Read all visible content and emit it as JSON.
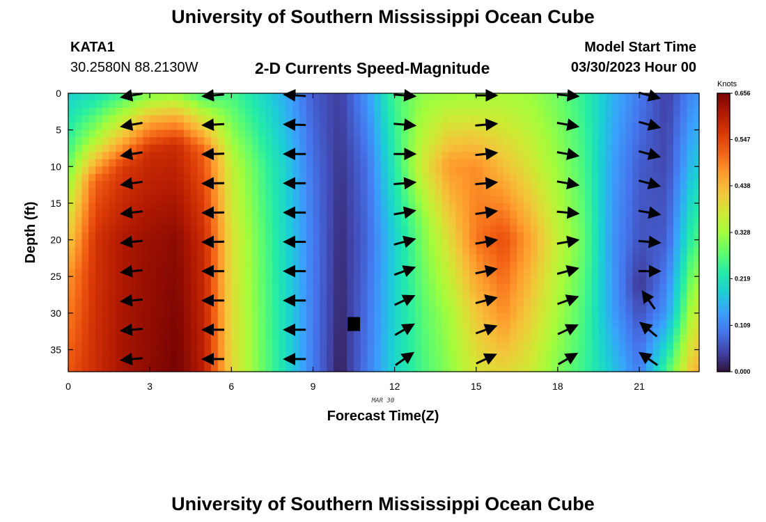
{
  "header": {
    "title": "University of Southern Mississippi Ocean Cube",
    "station": "KATA1",
    "coords": "30.2580N  88.2130W",
    "subtitle": "2-D Currents Speed-Magnitude",
    "model_start_label": "Model Start Time",
    "model_start_value": "03/30/2023 Hour 00"
  },
  "footer": {
    "title": "University of Southern Mississippi Ocean Cube"
  },
  "chart_data": {
    "type": "heatmap",
    "xlabel": "Forecast Time(Z)",
    "ylabel": "Depth (ft)",
    "date_label": "MAR 30",
    "xlim": [
      0,
      23.2
    ],
    "ylim": [
      38,
      0
    ],
    "xticks": [
      0,
      3,
      6,
      9,
      12,
      15,
      18,
      21
    ],
    "yticks": [
      0,
      5,
      10,
      15,
      20,
      25,
      30,
      35
    ],
    "colorbar": {
      "unit": "Knots",
      "ticks": [
        0.0,
        0.109,
        0.219,
        0.328,
        0.438,
        0.547,
        0.656
      ],
      "tick_labels": [
        "0.000",
        "0.109",
        "0.219",
        "0.328",
        "0.438",
        "0.547",
        "0.656"
      ],
      "range": [
        0,
        0.656
      ]
    },
    "colormap": [
      "#30123b",
      "#4145ab",
      "#4675ed",
      "#39a2fc",
      "#1bcfd4",
      "#24eca6",
      "#61fc6c",
      "#a4fc3b",
      "#d1e834",
      "#f3c63a",
      "#fe9b2d",
      "#f36315",
      "#d93806",
      "#b11901",
      "#7a0402"
    ],
    "speed_profiles": [
      {
        "time": 0,
        "depth_knots": [
          [
            0,
            0.19
          ],
          [
            8,
            0.26
          ],
          [
            15,
            0.36
          ],
          [
            25,
            0.47
          ],
          [
            38,
            0.53
          ]
        ]
      },
      {
        "time": 1,
        "depth_knots": [
          [
            0,
            0.21
          ],
          [
            6,
            0.33
          ],
          [
            12,
            0.52
          ],
          [
            20,
            0.57
          ],
          [
            38,
            0.58
          ]
        ]
      },
      {
        "time": 2,
        "depth_knots": [
          [
            0,
            0.25
          ],
          [
            5,
            0.4
          ],
          [
            10,
            0.56
          ],
          [
            20,
            0.61
          ],
          [
            38,
            0.62
          ]
        ]
      },
      {
        "time": 3,
        "depth_knots": [
          [
            0,
            0.3
          ],
          [
            4,
            0.46
          ],
          [
            8,
            0.58
          ],
          [
            20,
            0.63
          ],
          [
            38,
            0.64
          ]
        ]
      },
      {
        "time": 4,
        "depth_knots": [
          [
            0,
            0.31
          ],
          [
            3,
            0.44
          ],
          [
            7,
            0.58
          ],
          [
            20,
            0.64
          ],
          [
            38,
            0.66
          ]
        ]
      },
      {
        "time": 5,
        "depth_knots": [
          [
            0,
            0.25
          ],
          [
            3,
            0.36
          ],
          [
            8,
            0.52
          ],
          [
            20,
            0.58
          ],
          [
            38,
            0.6
          ]
        ]
      },
      {
        "time": 6,
        "depth_knots": [
          [
            0,
            0.26
          ],
          [
            10,
            0.36
          ],
          [
            20,
            0.39
          ],
          [
            38,
            0.4
          ]
        ]
      },
      {
        "time": 7,
        "depth_knots": [
          [
            0,
            0.21
          ],
          [
            10,
            0.27
          ],
          [
            20,
            0.29
          ],
          [
            38,
            0.3
          ]
        ]
      },
      {
        "time": 8,
        "depth_knots": [
          [
            0,
            0.15
          ],
          [
            10,
            0.19
          ],
          [
            20,
            0.2
          ],
          [
            38,
            0.21
          ]
        ]
      },
      {
        "time": 9,
        "depth_knots": [
          [
            0,
            0.07
          ],
          [
            10,
            0.09
          ],
          [
            20,
            0.1
          ],
          [
            38,
            0.1
          ]
        ]
      },
      {
        "time": 10,
        "depth_knots": [
          [
            0,
            0.04
          ],
          [
            10,
            0.03
          ],
          [
            25,
            0.02
          ],
          [
            38,
            0.01
          ]
        ]
      },
      {
        "time": 11,
        "depth_knots": [
          [
            0,
            0.13
          ],
          [
            10,
            0.09
          ],
          [
            20,
            0.08
          ],
          [
            38,
            0.1
          ]
        ]
      },
      {
        "time": 12,
        "depth_knots": [
          [
            0,
            0.26
          ],
          [
            10,
            0.23
          ],
          [
            20,
            0.19
          ],
          [
            38,
            0.2
          ]
        ]
      },
      {
        "time": 13,
        "depth_knots": [
          [
            0,
            0.31
          ],
          [
            10,
            0.37
          ],
          [
            18,
            0.3
          ],
          [
            30,
            0.27
          ],
          [
            38,
            0.26
          ]
        ]
      },
      {
        "time": 14,
        "depth_knots": [
          [
            0,
            0.32
          ],
          [
            10,
            0.47
          ],
          [
            20,
            0.39
          ],
          [
            30,
            0.33
          ],
          [
            38,
            0.31
          ]
        ]
      },
      {
        "time": 15,
        "depth_knots": [
          [
            0,
            0.32
          ],
          [
            10,
            0.48
          ],
          [
            20,
            0.5
          ],
          [
            30,
            0.42
          ],
          [
            38,
            0.38
          ]
        ]
      },
      {
        "time": 16,
        "depth_knots": [
          [
            0,
            0.33
          ],
          [
            10,
            0.43
          ],
          [
            20,
            0.54
          ],
          [
            30,
            0.48
          ],
          [
            38,
            0.4
          ]
        ]
      },
      {
        "time": 17,
        "depth_knots": [
          [
            0,
            0.32
          ],
          [
            10,
            0.38
          ],
          [
            20,
            0.46
          ],
          [
            30,
            0.41
          ],
          [
            38,
            0.37
          ]
        ]
      },
      {
        "time": 18,
        "depth_knots": [
          [
            0,
            0.29
          ],
          [
            10,
            0.32
          ],
          [
            20,
            0.36
          ],
          [
            30,
            0.33
          ],
          [
            38,
            0.3
          ]
        ]
      },
      {
        "time": 19,
        "depth_knots": [
          [
            0,
            0.24
          ],
          [
            10,
            0.26
          ],
          [
            20,
            0.28
          ],
          [
            30,
            0.26
          ],
          [
            38,
            0.25
          ]
        ]
      },
      {
        "time": 20,
        "depth_knots": [
          [
            0,
            0.16
          ],
          [
            10,
            0.14
          ],
          [
            20,
            0.13
          ],
          [
            30,
            0.14
          ],
          [
            38,
            0.18
          ]
        ]
      },
      {
        "time": 21,
        "depth_knots": [
          [
            0,
            0.1
          ],
          [
            10,
            0.07
          ],
          [
            20,
            0.06
          ],
          [
            26,
            0.03
          ],
          [
            32,
            0.07
          ],
          [
            38,
            0.1
          ]
        ]
      },
      {
        "time": 22,
        "depth_knots": [
          [
            0,
            0.04
          ],
          [
            10,
            0.05
          ],
          [
            20,
            0.07
          ],
          [
            30,
            0.13
          ],
          [
            38,
            0.26
          ]
        ]
      },
      {
        "time": 23,
        "depth_knots": [
          [
            0,
            0.12
          ],
          [
            10,
            0.18
          ],
          [
            20,
            0.26
          ],
          [
            30,
            0.36
          ],
          [
            38,
            0.44
          ]
        ]
      }
    ],
    "vector_times": [
      2.3,
      5.3,
      8.3,
      12.3,
      15.3,
      18.3,
      21.3
    ],
    "vector_depths": [
      0,
      4,
      8,
      12,
      16,
      20,
      24,
      28,
      32,
      36
    ],
    "vector_directions_deg": [
      [
        190,
        190,
        189,
        188,
        187,
        186,
        186,
        185,
        185,
        185
      ],
      [
        185,
        183,
        182,
        181,
        181,
        181,
        180,
        180,
        180,
        180
      ],
      [
        176,
        178,
        180,
        180,
        180,
        180,
        180,
        180,
        180,
        180
      ],
      [
        355,
        355,
        0,
        5,
        10,
        15,
        20,
        25,
        30,
        35
      ],
      [
        0,
        5,
        6,
        5,
        8,
        10,
        12,
        15,
        20,
        25
      ],
      [
        355,
        350,
        350,
        350,
        355,
        10,
        15,
        20,
        25,
        30
      ],
      [
        345,
        345,
        345,
        345,
        350,
        355,
        0,
        125,
        140,
        145
      ]
    ],
    "missing_cells": [
      {
        "time": 10.5,
        "depth": 31.5
      }
    ]
  }
}
